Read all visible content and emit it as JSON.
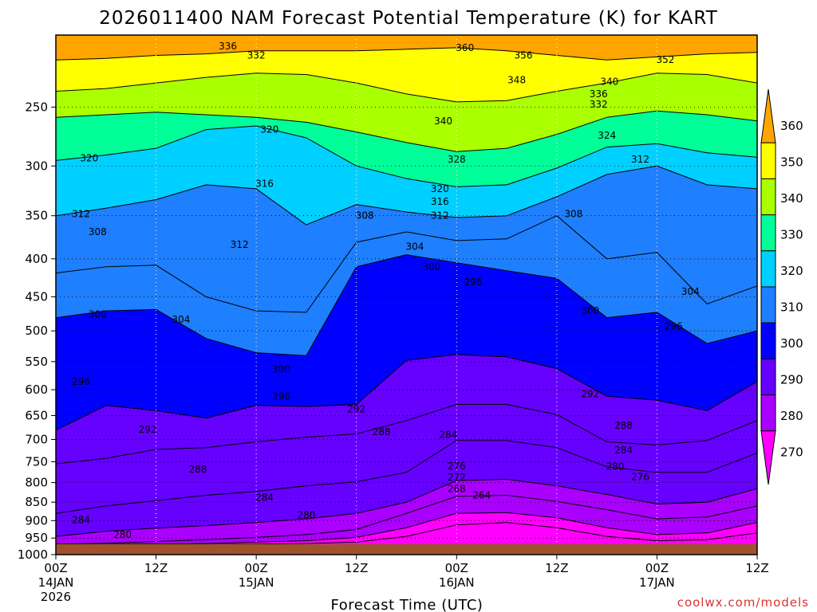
{
  "chart_data": {
    "type": "heatmap",
    "title": "2026011400 NAM Forecast Potential Temperature (K) for KART",
    "xlabel": "Forecast Time (UTC)",
    "ylabel": "",
    "credit": "coolwx.com/models",
    "x_range_hours": [
      0,
      84
    ],
    "y_range_hpa": [
      200,
      1000
    ],
    "y_scale": "log-pressure",
    "grid": true,
    "x_ticks": [
      {
        "hour": 0,
        "label": "00Z",
        "sub": [
          "14JAN",
          "2026"
        ]
      },
      {
        "hour": 12,
        "label": "12Z",
        "sub": []
      },
      {
        "hour": 24,
        "label": "00Z",
        "sub": [
          "15JAN"
        ]
      },
      {
        "hour": 36,
        "label": "12Z",
        "sub": []
      },
      {
        "hour": 48,
        "label": "00Z",
        "sub": [
          "16JAN"
        ]
      },
      {
        "hour": 60,
        "label": "12Z",
        "sub": []
      },
      {
        "hour": 72,
        "label": "00Z",
        "sub": [
          "17JAN"
        ]
      },
      {
        "hour": 84,
        "label": "12Z",
        "sub": []
      }
    ],
    "y_ticks": [
      250,
      300,
      350,
      400,
      450,
      500,
      550,
      600,
      650,
      700,
      750,
      800,
      850,
      900,
      950,
      1000
    ],
    "legend": {
      "placement": "right",
      "labels": [
        360,
        350,
        340,
        330,
        320,
        310,
        300,
        290,
        280,
        270
      ],
      "bands": [
        {
          "from": 350,
          "to": 360,
          "color": "#ffa500"
        },
        {
          "from": 340,
          "to": 350,
          "color": "#ffff00"
        },
        {
          "from": 330,
          "to": 340,
          "color": "#aaff00"
        },
        {
          "from": 320,
          "to": 330,
          "color": "#00ff99"
        },
        {
          "from": 310,
          "to": 320,
          "color": "#00d0ff"
        },
        {
          "from": 300,
          "to": 310,
          "color": "#1e7fff"
        },
        {
          "from": 290,
          "to": 300,
          "color": "#0000ff"
        },
        {
          "from": 280,
          "to": 290,
          "color": "#6600ff"
        },
        {
          "from": 270,
          "to": 280,
          "color": "#aa00ff"
        },
        {
          "from": 260,
          "to": 270,
          "color": "#ff00ff"
        }
      ]
    },
    "terrain": {
      "color": "#a0522d",
      "top_hpa": 968
    },
    "isentropes_hour_grid": [
      0,
      6,
      12,
      18,
      24,
      30,
      36,
      42,
      48,
      54,
      60,
      66,
      72,
      78,
      84
    ],
    "isentropes": [
      {
        "theta": 352,
        "p": [
          216,
          215,
          213,
          212,
          210,
          210,
          210,
          209,
          208,
          210,
          213,
          216,
          214,
          212,
          211
        ]
      },
      {
        "theta": 340,
        "p": [
          238,
          236,
          232,
          228,
          225,
          226,
          232,
          240,
          246,
          245,
          238,
          232,
          225,
          226,
          232
        ]
      },
      {
        "theta": 328,
        "p": [
          258,
          256,
          254,
          256,
          258,
          262,
          270,
          279,
          287,
          284,
          272,
          258,
          253,
          256,
          261
        ]
      },
      {
        "theta": 320,
        "p": [
          295,
          290,
          284,
          268,
          265,
          275,
          300,
          312,
          320,
          318,
          302,
          283,
          280,
          288,
          292
        ]
      },
      {
        "theta": 312,
        "p": [
          350,
          342,
          333,
          318,
          322,
          360,
          338,
          346,
          352,
          350,
          330,
          308,
          300,
          318,
          322
        ]
      },
      {
        "theta": 304,
        "p": [
          418,
          410,
          408,
          450,
          470,
          472,
          380,
          368,
          378,
          376,
          350,
          400,
          392,
          460,
          435
        ]
      },
      {
        "theta": 300,
        "p": [
          480,
          470,
          468,
          512,
          535,
          540,
          410,
          395,
          405,
          415,
          425,
          480,
          472,
          520,
          500
        ]
      },
      {
        "theta": 292,
        "p": [
          680,
          630,
          640,
          655,
          630,
          632,
          628,
          548,
          538,
          542,
          562,
          612,
          620,
          640,
          585
        ]
      },
      {
        "theta": 288,
        "p": [
          755,
          742,
          722,
          718,
          705,
          695,
          688,
          660,
          628,
          628,
          648,
          705,
          712,
          702,
          660
        ]
      },
      {
        "theta": 284,
        "p": [
          880,
          860,
          846,
          832,
          822,
          808,
          798,
          775,
          702,
          702,
          718,
          762,
          775,
          775,
          730
        ]
      },
      {
        "theta": 280,
        "p": [
          945,
          930,
          921,
          914,
          905,
          895,
          880,
          850,
          795,
          792,
          808,
          830,
          855,
          850,
          815
        ]
      },
      {
        "theta": 276,
        "p": [
          968,
          965,
          960,
          955,
          948,
          940,
          925,
          880,
          835,
          832,
          848,
          870,
          895,
          890,
          860
        ]
      },
      {
        "theta": 268,
        "p": [
          968,
          968,
          968,
          966,
          962,
          958,
          948,
          920,
          880,
          878,
          892,
          920,
          940,
          935,
          905
        ]
      },
      {
        "theta": 264,
        "p": [
          968,
          968,
          968,
          968,
          968,
          966,
          962,
          945,
          912,
          905,
          920,
          945,
          958,
          955,
          935
        ]
      }
    ],
    "contour_labels": [
      {
        "hour": 20.6,
        "p": 207,
        "text": "336"
      },
      {
        "hour": 24.0,
        "p": 213,
        "text": "332"
      },
      {
        "hour": 49.0,
        "p": 208,
        "text": "360"
      },
      {
        "hour": 56.0,
        "p": 213,
        "text": "356"
      },
      {
        "hour": 73.0,
        "p": 216,
        "text": "352"
      },
      {
        "hour": 55.2,
        "p": 230,
        "text": "348"
      },
      {
        "hour": 66.3,
        "p": 231,
        "text": "340"
      },
      {
        "hour": 46.4,
        "p": 261,
        "text": "340"
      },
      {
        "hour": 65.0,
        "p": 240,
        "text": "336"
      },
      {
        "hour": 65.0,
        "p": 248,
        "text": "332"
      },
      {
        "hour": 66.0,
        "p": 273,
        "text": "324"
      },
      {
        "hour": 25.6,
        "p": 268,
        "text": "320"
      },
      {
        "hour": 4.0,
        "p": 293,
        "text": "320"
      },
      {
        "hour": 48.0,
        "p": 294,
        "text": "328"
      },
      {
        "hour": 70.0,
        "p": 294,
        "text": "312"
      },
      {
        "hour": 25.0,
        "p": 317,
        "text": "316"
      },
      {
        "hour": 46.0,
        "p": 322,
        "text": "320"
      },
      {
        "hour": 46.0,
        "p": 335,
        "text": "316"
      },
      {
        "hour": 46.0,
        "p": 350,
        "text": "312"
      },
      {
        "hour": 37.0,
        "p": 350,
        "text": "308"
      },
      {
        "hour": 62.0,
        "p": 348,
        "text": "308"
      },
      {
        "hour": 3.0,
        "p": 348,
        "text": "312"
      },
      {
        "hour": 5.0,
        "p": 368,
        "text": "308"
      },
      {
        "hour": 22.0,
        "p": 383,
        "text": "312"
      },
      {
        "hour": 43.0,
        "p": 385,
        "text": "304"
      },
      {
        "hour": 45.0,
        "p": 410,
        "text": "300"
      },
      {
        "hour": 50.0,
        "p": 430,
        "text": "296"
      },
      {
        "hour": 76.0,
        "p": 443,
        "text": "304"
      },
      {
        "hour": 15.0,
        "p": 483,
        "text": "304"
      },
      {
        "hour": 5.0,
        "p": 475,
        "text": "300"
      },
      {
        "hour": 64.0,
        "p": 470,
        "text": "300"
      },
      {
        "hour": 74.0,
        "p": 493,
        "text": "296"
      },
      {
        "hour": 27.0,
        "p": 563,
        "text": "300"
      },
      {
        "hour": 3.0,
        "p": 585,
        "text": "296"
      },
      {
        "hour": 27.0,
        "p": 613,
        "text": "296"
      },
      {
        "hour": 36.0,
        "p": 637,
        "text": "292"
      },
      {
        "hour": 64.0,
        "p": 608,
        "text": "292"
      },
      {
        "hour": 11.0,
        "p": 679,
        "text": "292"
      },
      {
        "hour": 39.0,
        "p": 684,
        "text": "288"
      },
      {
        "hour": 47.0,
        "p": 690,
        "text": "284"
      },
      {
        "hour": 68.0,
        "p": 670,
        "text": "288"
      },
      {
        "hour": 68.0,
        "p": 724,
        "text": "284"
      },
      {
        "hour": 17.0,
        "p": 768,
        "text": "288"
      },
      {
        "hour": 67.0,
        "p": 761,
        "text": "280"
      },
      {
        "hour": 70.0,
        "p": 786,
        "text": "276"
      },
      {
        "hour": 25.0,
        "p": 838,
        "text": "284"
      },
      {
        "hour": 48.0,
        "p": 760,
        "text": "276"
      },
      {
        "hour": 48.0,
        "p": 787,
        "text": "272"
      },
      {
        "hour": 48.0,
        "p": 816,
        "text": "268"
      },
      {
        "hour": 51.0,
        "p": 832,
        "text": "264"
      },
      {
        "hour": 30.0,
        "p": 885,
        "text": "280"
      },
      {
        "hour": 3.0,
        "p": 898,
        "text": "284"
      },
      {
        "hour": 8.0,
        "p": 940,
        "text": "280"
      }
    ]
  }
}
